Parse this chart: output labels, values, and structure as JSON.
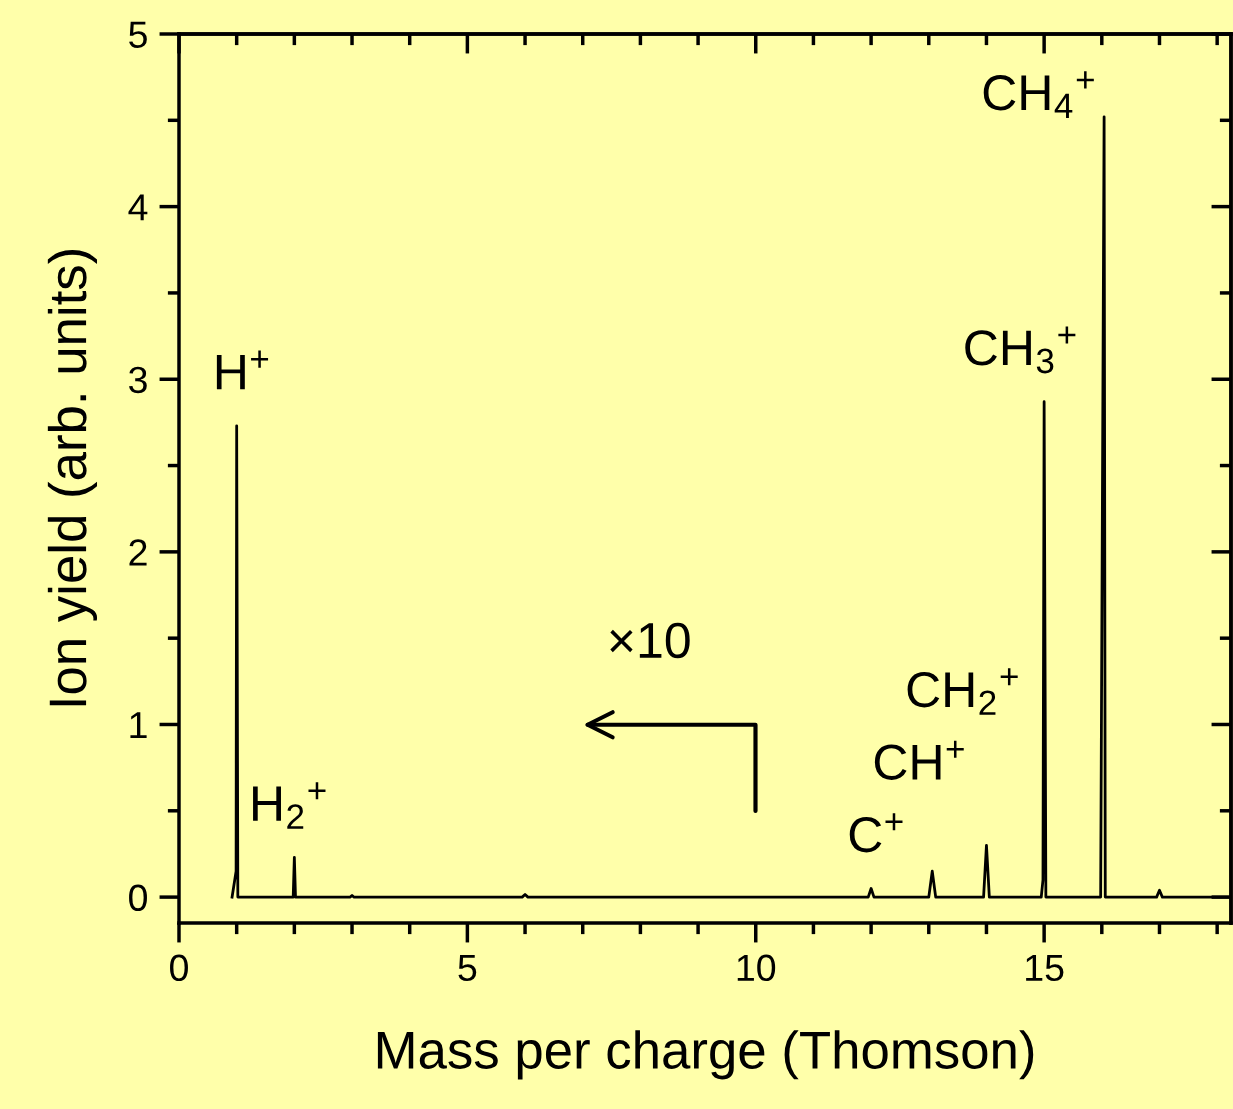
{
  "chart_data": {
    "type": "line",
    "xlabel": "Mass per charge (Thomson)",
    "ylabel": "Ion yield (arb. units)",
    "series": [
      {
        "color": "#000000",
        "x": [
          0.92,
          0.99,
          1.0,
          1.02,
          1.7,
          1.98,
          2.0,
          2.02,
          2.97,
          3.0,
          3.03,
          5.95,
          6.0,
          6.05,
          11.95,
          12.0,
          12.05,
          13.0,
          13.06,
          13.12,
          13.95,
          14.0,
          14.05,
          14.95,
          14.98,
          15.0,
          15.03,
          15.98,
          16.04,
          16.06,
          16.95,
          17.0,
          17.05,
          18.2
        ],
        "values": [
          0,
          0.15,
          2.73,
          0,
          0,
          0,
          0.23,
          0,
          0,
          0.01,
          0,
          0,
          0.015,
          0,
          0,
          0.05,
          0,
          0,
          0.15,
          0,
          0,
          0.3,
          0,
          0,
          0.1,
          2.87,
          0,
          0,
          4.52,
          0,
          0,
          0.04,
          0,
          0
        ]
      }
    ],
    "xlim": [
      0,
      18.24
    ],
    "ylim": [
      -0.15,
      5
    ],
    "xticks": [
      0,
      {
        "value": 1,
        "label": null
      },
      {
        "value": 2,
        "label": null
      },
      {
        "value": 3,
        "label": null
      },
      {
        "value": 4,
        "label": null
      },
      5,
      {
        "value": 6,
        "label": null
      },
      {
        "value": 7,
        "label": null
      },
      {
        "value": 8,
        "label": null
      },
      {
        "value": 9,
        "label": null
      },
      10,
      {
        "value": 11,
        "label": null
      },
      {
        "value": 12,
        "label": null
      },
      {
        "value": 13,
        "label": null
      },
      {
        "value": 14,
        "label": null
      },
      15,
      {
        "value": 16,
        "label": null
      },
      {
        "value": 17,
        "label": null
      },
      {
        "value": 18,
        "label": null
      }
    ],
    "yticks": [
      0,
      {
        "value": 0.5,
        "label": null
      },
      1,
      {
        "value": 1.5,
        "label": null
      },
      2,
      {
        "value": 2.5,
        "label": null
      },
      3,
      {
        "value": 3.5,
        "label": null
      },
      4,
      {
        "value": 4.5,
        "label": null
      },
      5
    ],
    "grid": false,
    "legend": false,
    "annotations": [
      {
        "text": "H$^{+}$",
        "x": 1.0,
        "y": 2.73
      },
      {
        "text": "H$_{2}$$^{+}$",
        "x": 2.0,
        "y": 0.23
      },
      {
        "text": "C$^{+}$",
        "x": 12.0,
        "y": 0.05
      },
      {
        "text": "CH$^{+}$",
        "x": 13.06,
        "y": 0.15
      },
      {
        "text": "CH$_{2}$$^{+}$",
        "x": 14.0,
        "y": 0.3
      },
      {
        "text": "CH$_{3}$$^{+}$",
        "x": 15.0,
        "y": 2.87
      },
      {
        "text": "CH$_{4}$$^{+}$",
        "x": 16.04,
        "y": 4.52
      },
      "×10"
    ]
  }
}
